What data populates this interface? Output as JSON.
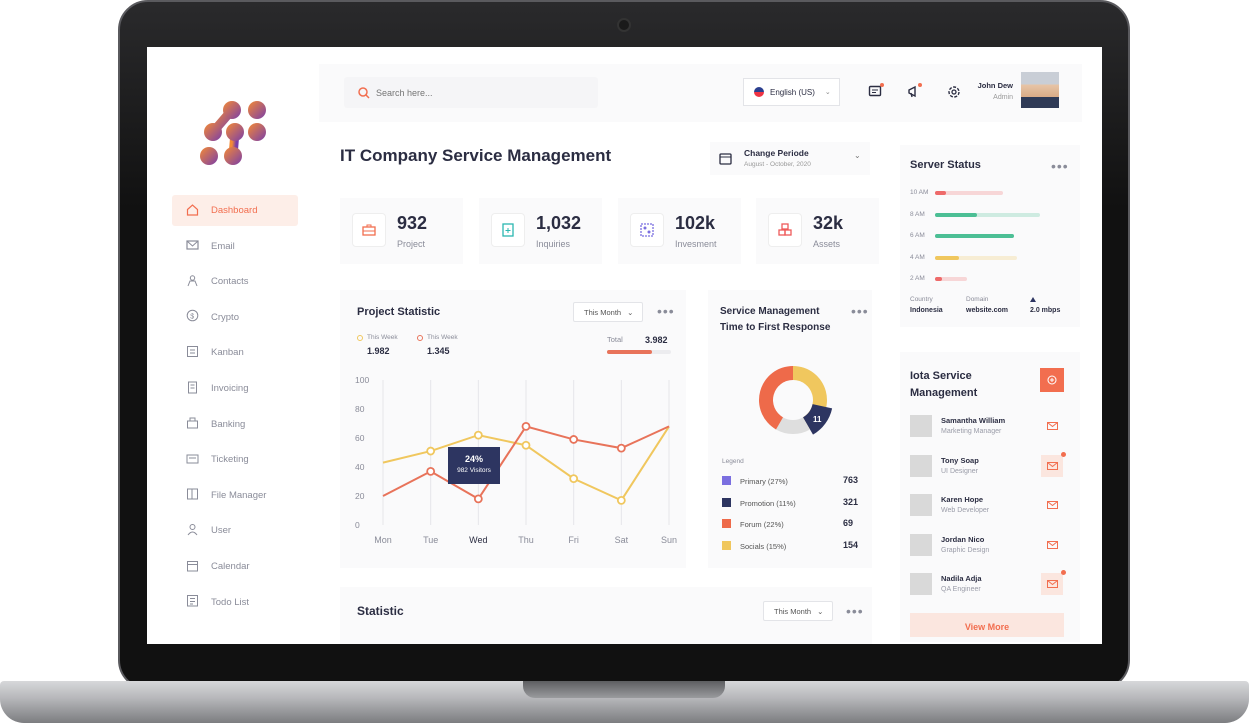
{
  "search": {
    "placeholder": "Search here..."
  },
  "language": {
    "label": "English (US)"
  },
  "user": {
    "name": "John Dew",
    "role": "Admin"
  },
  "sidebar": {
    "items": [
      {
        "label": "Dashboard",
        "icon": "home-icon",
        "active": true
      },
      {
        "label": "Email",
        "icon": "mail-icon"
      },
      {
        "label": "Contacts",
        "icon": "contacts-icon"
      },
      {
        "label": "Crypto",
        "icon": "dollar-icon"
      },
      {
        "label": "Kanban",
        "icon": "kanban-icon"
      },
      {
        "label": "Invoicing",
        "icon": "invoice-icon"
      },
      {
        "label": "Banking",
        "icon": "bank-icon"
      },
      {
        "label": "Ticketing",
        "icon": "ticket-icon"
      },
      {
        "label": "File Manager",
        "icon": "folder-icon"
      },
      {
        "label": "User",
        "icon": "user-icon"
      },
      {
        "label": "Calendar",
        "icon": "calendar-icon"
      },
      {
        "label": "Todo List",
        "icon": "todo-icon"
      }
    ]
  },
  "page": {
    "title": "IT Company  Service Management",
    "period_label": "Change Periode",
    "period_value": "August - October, 2020"
  },
  "stats": [
    {
      "value": "932",
      "label": "Project"
    },
    {
      "value": "1,032",
      "label": "Inquiries"
    },
    {
      "value": "102k",
      "label": "Invesment"
    },
    {
      "value": "32k",
      "label": "Assets"
    }
  ],
  "project_statistic": {
    "title": "Project Statistic",
    "filter": "This Month",
    "legend": [
      {
        "name": "This Week",
        "value": "1.982",
        "color": "#f0c75e"
      },
      {
        "name": "This Week",
        "value": "1.345",
        "color": "#e8735a"
      }
    ],
    "total_label": "Total",
    "total_value": "3.982",
    "tooltip_pct": "24%",
    "tooltip_text": "982 Visitors"
  },
  "chart_data": {
    "type": "line",
    "categories": [
      "Mon",
      "Tue",
      "Wed",
      "Thu",
      "Fri",
      "Sat",
      "Sun"
    ],
    "ylim": [
      0,
      100
    ],
    "yticks": [
      "100",
      "80",
      "60",
      "40",
      "20",
      "0"
    ],
    "series": [
      {
        "values": [
          43,
          51,
          62,
          55,
          32,
          17,
          68
        ],
        "color": "#f0c75e"
      },
      {
        "values": [
          20,
          37,
          18,
          68,
          59,
          53,
          68
        ],
        "color": "#e8735a"
      }
    ]
  },
  "service_response": {
    "title_line1": "Service Management",
    "title_line2": "Time to First Response",
    "donut_value": "11",
    "legend_title": "Legend",
    "legend": [
      {
        "name": "Primary (27%)",
        "value": "763",
        "color": "#7b6fe0"
      },
      {
        "name": "Promotion (11%)",
        "value": "321",
        "color": "#2d3561"
      },
      {
        "name": "Forum (22%)",
        "value": "69",
        "color": "#ee6a4a"
      },
      {
        "name": "Socials (15%)",
        "value": "154",
        "color": "#f0c75e"
      }
    ]
  },
  "server_status": {
    "title": "Server Status",
    "rows": [
      {
        "time": "10 AM",
        "color": "#ee6a6a",
        "level": 0.1,
        "track": 0.65
      },
      {
        "time": "8 AM",
        "color": "#4cbf95",
        "level": 0.4,
        "track": 1.0
      },
      {
        "time": "6 AM",
        "color": "#4cbf95",
        "level": 0.75,
        "track": 0.75
      },
      {
        "time": "4 AM",
        "color": "#f0c75e",
        "level": 0.23,
        "track": 0.78
      },
      {
        "time": "2 AM",
        "color": "#ee6a6a",
        "level": 0.07,
        "track": 0.3
      }
    ],
    "country_label": "Country",
    "country_value": "Indonesia",
    "domain_label": "Domain",
    "domain_value": "website.com",
    "speed_value": "2.0 mbps"
  },
  "iota": {
    "title_line1": "Iota Service",
    "title_line2": "Management",
    "people": [
      {
        "name": "Samantha William",
        "role": "Marketing Manager",
        "badge": false
      },
      {
        "name": "Tony Soap",
        "role": "UI Designer",
        "badge": true
      },
      {
        "name": "Karen Hope",
        "role": "Web Developer",
        "badge": false
      },
      {
        "name": "Jordan Nico",
        "role": "Graphic Design",
        "badge": false
      },
      {
        "name": "Nadila Adja",
        "role": "QA Engineer",
        "badge": true
      }
    ],
    "view_more": "View More"
  },
  "statistic": {
    "title": "Statistic",
    "filter": "This Month"
  },
  "colors": {
    "accent": "#f26e4f",
    "navy": "#2d3561",
    "yellow": "#f0c75e"
  }
}
